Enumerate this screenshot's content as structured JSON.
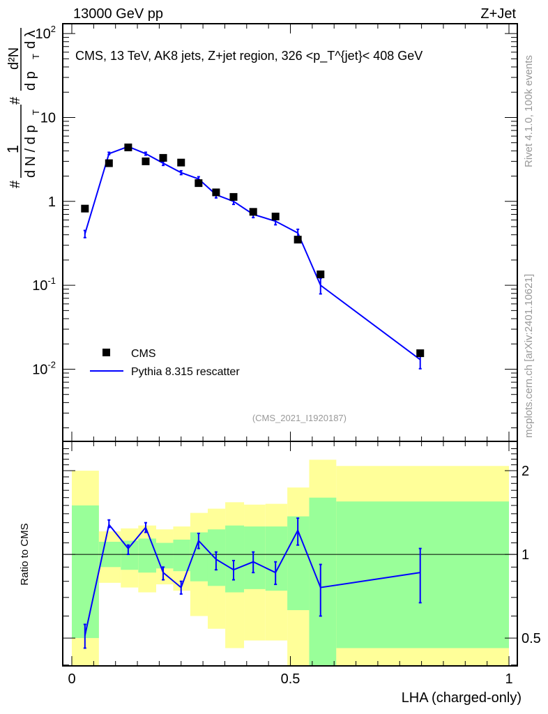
{
  "header": {
    "left": "13000 GeV pp",
    "right": "Z+Jet"
  },
  "side_text": {
    "rivet": "Rivet 4.1.0,  100k events",
    "mcplots": "mcplots.cern.ch [arXiv:2401.10621]"
  },
  "analysis_id": "(CMS_2021_I1920187)",
  "colors": {
    "mc": "#0000ff",
    "data": "#000000",
    "band_inner": "#99ff99",
    "band_outer": "#ffff99"
  },
  "chart_data": [
    {
      "type": "scatter",
      "panel": "main",
      "title": "CMS, 13 TeV, AK8 jets, Z+jet region, 326 <p_T^{jet}< 408 GeV",
      "title_parts": {
        "pre": "CMS, 13 TeV, AK8 jets, Z+jet region, 326 <p",
        "sup": "{jet}",
        "sub": "T",
        "post": "}< 408 GeV"
      },
      "ylabel": "1/(dN/dp_T) d²N/(dp_T dλ)",
      "ylabel_parts": {
        "hash1": "#",
        "num1": "1",
        "den1": "d N / d p",
        "sub_T": "T",
        "hash2": "#",
        "num2": "d²N",
        "den2": "d p",
        "lambda": "d λ"
      },
      "yscale": "log",
      "ylim": [
        0.00138,
        131
      ],
      "xlim": [
        0,
        1
      ],
      "yticks": [
        {
          "v": 0.01,
          "base": "10",
          "exp": "-2"
        },
        {
          "v": 0.1,
          "base": "10",
          "exp": "-1"
        },
        {
          "v": 1,
          "base": "1",
          "exp": ""
        },
        {
          "v": 10,
          "base": "10",
          "exp": ""
        },
        {
          "v": 100,
          "base": "10",
          "exp": "2"
        }
      ],
      "legend": {
        "placement": "bottom-left",
        "entries": [
          "CMS",
          "Pythia 8.315 rescatter"
        ]
      },
      "x": [
        0.03,
        0.085,
        0.129,
        0.169,
        0.209,
        0.25,
        0.29,
        0.33,
        0.37,
        0.415,
        0.466,
        0.517,
        0.569,
        0.797
      ],
      "series": [
        {
          "name": "CMS",
          "style": "markers",
          "values": [
            0.82,
            2.85,
            4.4,
            3.0,
            3.3,
            2.9,
            1.65,
            1.28,
            1.13,
            0.75,
            0.66,
            0.35,
            0.135,
            0.0155
          ]
        },
        {
          "name": "Pythia 8.315 rescatter",
          "style": "line",
          "values": [
            0.41,
            3.7,
            4.5,
            3.7,
            2.85,
            2.2,
            1.85,
            1.2,
            1.0,
            0.7,
            0.58,
            0.42,
            0.1,
            0.013
          ]
        }
      ]
    },
    {
      "type": "line",
      "panel": "ratio",
      "ylabel": "Ratio to CMS",
      "xlabel": "LHA (charged-only)",
      "yscale": "log",
      "ylim": [
        0.397,
        2.55
      ],
      "xlim": [
        0,
        1
      ],
      "xticks": [
        "0",
        "0.5",
        "1"
      ],
      "yticks": [
        {
          "v": 0.5,
          "label": "0.5"
        },
        {
          "v": 1,
          "label": "1"
        },
        {
          "v": 2,
          "label": "2"
        }
      ],
      "bin_edges": [
        0,
        0.062,
        0.112,
        0.152,
        0.193,
        0.232,
        0.271,
        0.311,
        0.351,
        0.394,
        0.443,
        0.493,
        0.543,
        0.605,
        1.0
      ],
      "band_inner": {
        "lo": [
          0.5,
          0.9,
          0.88,
          0.86,
          0.89,
          0.87,
          0.8,
          0.77,
          0.73,
          0.75,
          0.74,
          0.63,
          0.35,
          0.46
        ],
        "hi": [
          1.5,
          1.11,
          1.12,
          1.14,
          1.1,
          1.13,
          1.2,
          1.23,
          1.27,
          1.26,
          1.26,
          1.37,
          1.6,
          1.55
        ]
      },
      "band_outer": {
        "lo": [
          0.35,
          0.79,
          0.76,
          0.73,
          0.78,
          0.74,
          0.6,
          0.54,
          0.46,
          0.49,
          0.49,
          0.35,
          0.35,
          0.35
        ],
        "hi": [
          2.0,
          1.21,
          1.24,
          1.27,
          1.23,
          1.26,
          1.41,
          1.46,
          1.54,
          1.51,
          1.52,
          1.74,
          2.19,
          2.08
        ]
      },
      "x": [
        0.03,
        0.085,
        0.129,
        0.169,
        0.209,
        0.25,
        0.29,
        0.33,
        0.37,
        0.415,
        0.466,
        0.517,
        0.569,
        0.797
      ],
      "series": [
        {
          "name": "Pythia 8.315 rescatter / CMS",
          "values": [
            0.51,
            1.28,
            1.05,
            1.25,
            0.86,
            0.76,
            1.12,
            0.96,
            0.88,
            0.94,
            0.86,
            1.22,
            0.76,
            0.86
          ],
          "err_lo": [
            0.46,
            1.25,
            1.0,
            1.2,
            0.81,
            0.72,
            1.05,
            0.88,
            0.81,
            0.86,
            0.78,
            1.08,
            0.6,
            0.67
          ],
          "err_hi": [
            0.56,
            1.33,
            1.08,
            1.3,
            0.9,
            0.8,
            1.19,
            1.02,
            0.95,
            1.02,
            0.94,
            1.35,
            0.92,
            1.05
          ]
        }
      ]
    }
  ]
}
